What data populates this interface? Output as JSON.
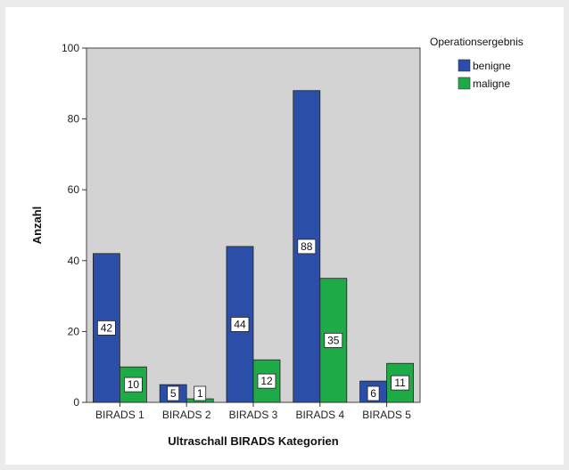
{
  "chart_data": {
    "type": "bar",
    "categories": [
      "BIRADS 1",
      "BIRADS 2",
      "BIRADS 3",
      "BIRADS 4",
      "BIRADS 5"
    ],
    "series": [
      {
        "name": "benigne",
        "values": [
          42,
          5,
          44,
          88,
          6
        ],
        "color": "#2b4fa8"
      },
      {
        "name": "maligne",
        "values": [
          10,
          1,
          12,
          35,
          11
        ],
        "color": "#1faa48"
      }
    ],
    "xlabel": "Ultraschall BIRADS Kategorien",
    "ylabel": "Anzahl",
    "ylim": [
      0,
      100
    ],
    "yticks": [
      0,
      20,
      40,
      60,
      80,
      100
    ],
    "legend_title": "Operationsergebnis",
    "legend_position": "top-right",
    "plot_background": "#d3d3d3",
    "grid": false
  }
}
